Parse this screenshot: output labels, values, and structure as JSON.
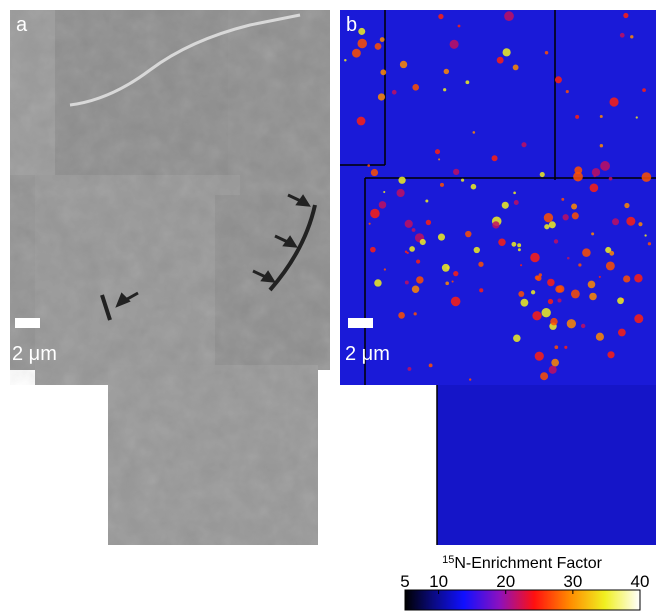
{
  "panels": [
    {
      "label": "a",
      "scale_bar": "2 μm"
    },
    {
      "label": "b",
      "scale_bar": "2 μm"
    }
  ],
  "colorbar": {
    "title_superscript": "15",
    "title": "N-Enrichment Factor",
    "range": [
      5,
      40
    ],
    "ticks": [
      5,
      10,
      20,
      30,
      40
    ]
  }
}
